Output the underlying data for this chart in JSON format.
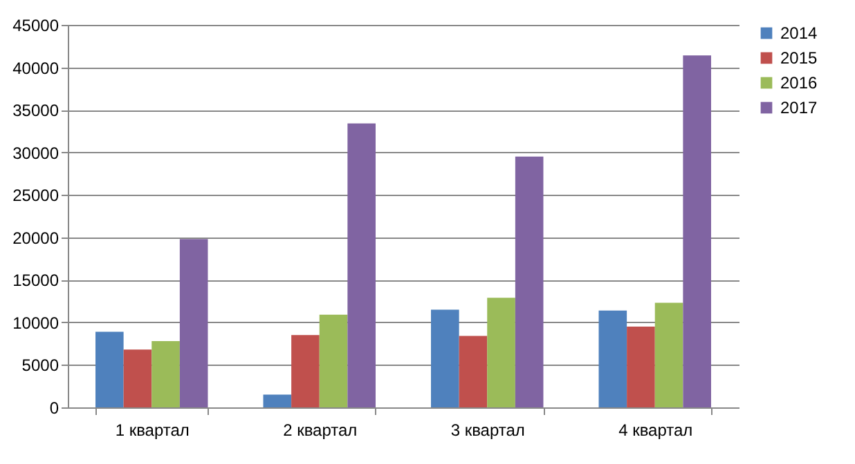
{
  "chart_data": {
    "type": "bar",
    "categories": [
      "1  квартал",
      "2  квартал",
      "3  квартал",
      "4  квартал"
    ],
    "series": [
      {
        "name": "2014",
        "color": "#4f81bd",
        "values": [
          8900,
          1500,
          11500,
          11400
        ]
      },
      {
        "name": "2015",
        "color": "#c0504d",
        "values": [
          6800,
          8500,
          8400,
          9500
        ]
      },
      {
        "name": "2016",
        "color": "#9bbb59",
        "values": [
          7800,
          10900,
          12900,
          12300
        ]
      },
      {
        "name": "2017",
        "color": "#8064a2",
        "values": [
          19800,
          33400,
          29500,
          41400
        ]
      }
    ],
    "ylim": [
      0,
      45000
    ],
    "yticks": [
      0,
      5000,
      10000,
      15000,
      20000,
      25000,
      30000,
      35000,
      40000,
      45000
    ],
    "grid": "y",
    "legend": "right"
  }
}
